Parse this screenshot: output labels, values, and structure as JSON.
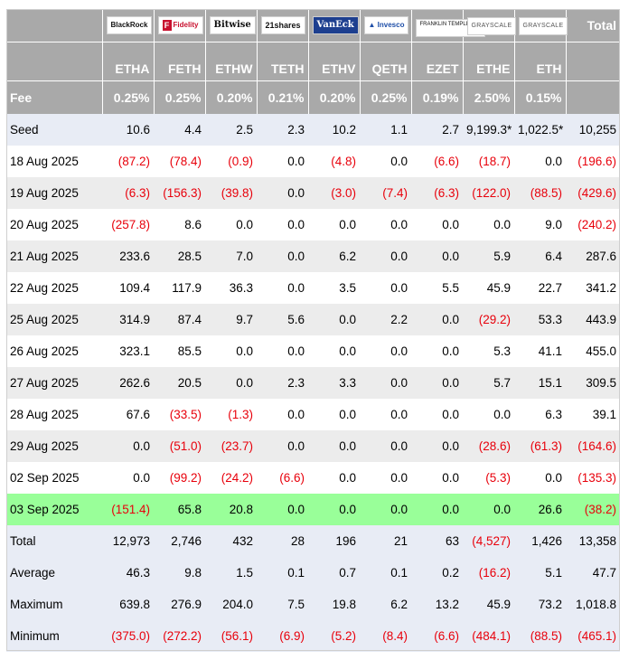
{
  "header": {
    "total_label": "Total",
    "issuers": [
      {
        "name": "BlackRock"
      },
      {
        "name": "Fidelity"
      },
      {
        "name": "Bitwise"
      },
      {
        "name": "21shares"
      },
      {
        "name": "VanEck"
      },
      {
        "name": "Invesco"
      },
      {
        "name": "FRANKLIN TEMPLETON"
      },
      {
        "name": "GRAYSCALE"
      },
      {
        "name": "GRAYSCALE"
      }
    ],
    "tickers": [
      "ETHA",
      "FETH",
      "ETHW",
      "TETH",
      "ETHV",
      "QETH",
      "EZET",
      "ETHE",
      "ETH"
    ],
    "fee_label": "Fee",
    "fees": [
      "0.25%",
      "0.25%",
      "0.20%",
      "0.21%",
      "0.20%",
      "0.25%",
      "0.19%",
      "2.50%",
      "0.15%"
    ]
  },
  "rows": [
    {
      "label": "Seed",
      "style": "seed",
      "cells": [
        "10.6",
        "4.4",
        "2.5",
        "2.3",
        "10.2",
        "1.1",
        "2.7",
        "9,199.3*",
        "1,022.5*",
        "10,255"
      ]
    },
    {
      "label": "18 Aug 2025",
      "style": "plain",
      "cells": [
        "(87.2)",
        "(78.4)",
        "(0.9)",
        "0.0",
        "(4.8)",
        "0.0",
        "(6.6)",
        "(18.7)",
        "0.0",
        "(196.6)"
      ]
    },
    {
      "label": "19 Aug 2025",
      "style": "alt",
      "cells": [
        "(6.3)",
        "(156.3)",
        "(39.8)",
        "0.0",
        "(3.0)",
        "(7.4)",
        "(6.3)",
        "(122.0)",
        "(88.5)",
        "(429.6)"
      ]
    },
    {
      "label": "20 Aug 2025",
      "style": "plain",
      "cells": [
        "(257.8)",
        "8.6",
        "0.0",
        "0.0",
        "0.0",
        "0.0",
        "0.0",
        "0.0",
        "9.0",
        "(240.2)"
      ]
    },
    {
      "label": "21 Aug 2025",
      "style": "alt",
      "cells": [
        "233.6",
        "28.5",
        "7.0",
        "0.0",
        "6.2",
        "0.0",
        "0.0",
        "5.9",
        "6.4",
        "287.6"
      ]
    },
    {
      "label": "22 Aug 2025",
      "style": "plain",
      "cells": [
        "109.4",
        "117.9",
        "36.3",
        "0.0",
        "3.5",
        "0.0",
        "5.5",
        "45.9",
        "22.7",
        "341.2"
      ]
    },
    {
      "label": "25 Aug 2025",
      "style": "alt",
      "cells": [
        "314.9",
        "87.4",
        "9.7",
        "5.6",
        "0.0",
        "2.2",
        "0.0",
        "(29.2)",
        "53.3",
        "443.9"
      ]
    },
    {
      "label": "26 Aug 2025",
      "style": "plain",
      "cells": [
        "323.1",
        "85.5",
        "0.0",
        "0.0",
        "0.0",
        "0.0",
        "0.0",
        "5.3",
        "41.1",
        "455.0"
      ]
    },
    {
      "label": "27 Aug 2025",
      "style": "alt",
      "cells": [
        "262.6",
        "20.5",
        "0.0",
        "2.3",
        "3.3",
        "0.0",
        "0.0",
        "5.7",
        "15.1",
        "309.5"
      ]
    },
    {
      "label": "28 Aug 2025",
      "style": "plain",
      "cells": [
        "67.6",
        "(33.5)",
        "(1.3)",
        "0.0",
        "0.0",
        "0.0",
        "0.0",
        "0.0",
        "6.3",
        "39.1"
      ]
    },
    {
      "label": "29 Aug 2025",
      "style": "alt",
      "cells": [
        "0.0",
        "(51.0)",
        "(23.7)",
        "0.0",
        "0.0",
        "0.0",
        "0.0",
        "(28.6)",
        "(61.3)",
        "(164.6)"
      ]
    },
    {
      "label": "02 Sep 2025",
      "style": "plain",
      "cells": [
        "0.0",
        "(99.2)",
        "(24.2)",
        "(6.6)",
        "0.0",
        "0.0",
        "0.0",
        "(5.3)",
        "0.0",
        "(135.3)"
      ]
    },
    {
      "label": "03 Sep 2025",
      "style": "green",
      "cells": [
        "(151.4)",
        "65.8",
        "20.8",
        "0.0",
        "0.0",
        "0.0",
        "0.0",
        "0.0",
        "26.6",
        "(38.2)"
      ]
    },
    {
      "label": "Total",
      "style": "stat",
      "cells": [
        "12,973",
        "2,746",
        "432",
        "28",
        "196",
        "21",
        "63",
        "(4,527)",
        "1,426",
        "13,358"
      ]
    },
    {
      "label": "Average",
      "style": "stat",
      "cells": [
        "46.3",
        "9.8",
        "1.5",
        "0.1",
        "0.7",
        "0.1",
        "0.2",
        "(16.2)",
        "5.1",
        "47.7"
      ]
    },
    {
      "label": "Maximum",
      "style": "stat",
      "cells": [
        "639.8",
        "276.9",
        "204.0",
        "7.5",
        "19.8",
        "6.2",
        "13.2",
        "45.9",
        "73.2",
        "1,018.8"
      ]
    },
    {
      "label": "Minimum",
      "style": "stat",
      "cells": [
        "(375.0)",
        "(272.2)",
        "(56.1)",
        "(6.9)",
        "(5.2)",
        "(8.4)",
        "(6.6)",
        "(484.1)",
        "(88.5)",
        "(465.1)"
      ]
    }
  ],
  "colors": {
    "header_bg": "#a9a9a9",
    "negative": "#e8000b",
    "highlight": "#99ff99",
    "seed_bg": "#e8ecf5",
    "alt_bg": "#ececec"
  }
}
